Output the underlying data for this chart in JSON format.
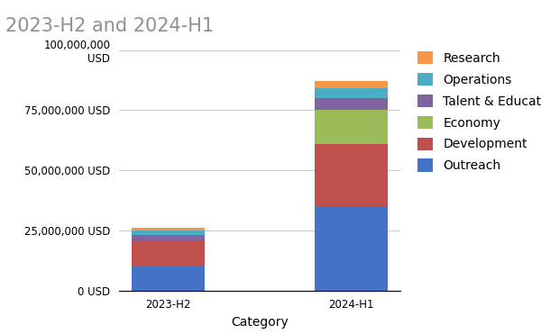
{
  "title": "2023-H2 and 2024-H1",
  "xlabel": "Category",
  "categories": [
    "2023-H2",
    "2024-H1"
  ],
  "series": [
    {
      "label": "Outreach",
      "color": "#4472C4",
      "values": [
        10000000,
        35000000
      ]
    },
    {
      "label": "Development",
      "color": "#C0504D",
      "values": [
        11000000,
        26000000
      ]
    },
    {
      "label": "Economy",
      "color": "#9BBB59",
      "values": [
        0,
        14000000
      ]
    },
    {
      "label": "Talent & Education",
      "color": "#8064A2",
      "values": [
        2000000,
        5000000
      ]
    },
    {
      "label": "Operations",
      "color": "#4BACC6",
      "values": [
        2000000,
        4000000
      ]
    },
    {
      "label": "Research",
      "color": "#F79646",
      "values": [
        1000000,
        3000000
      ]
    }
  ],
  "ylim": [
    0,
    100000000
  ],
  "yticks": [
    0,
    25000000,
    50000000,
    75000000,
    100000000
  ],
  "ytick_labels": [
    "0 USD",
    "25,000,000 USD",
    "50,000,000 USD",
    "75,000,000 USD",
    "100,000,000\nUSD"
  ],
  "grid_color": "#CCCCCC",
  "background_color": "#FFFFFF",
  "title_color": "#909090",
  "title_fontsize": 15,
  "label_fontsize": 10,
  "tick_fontsize": 8.5,
  "bar_width": 0.4
}
